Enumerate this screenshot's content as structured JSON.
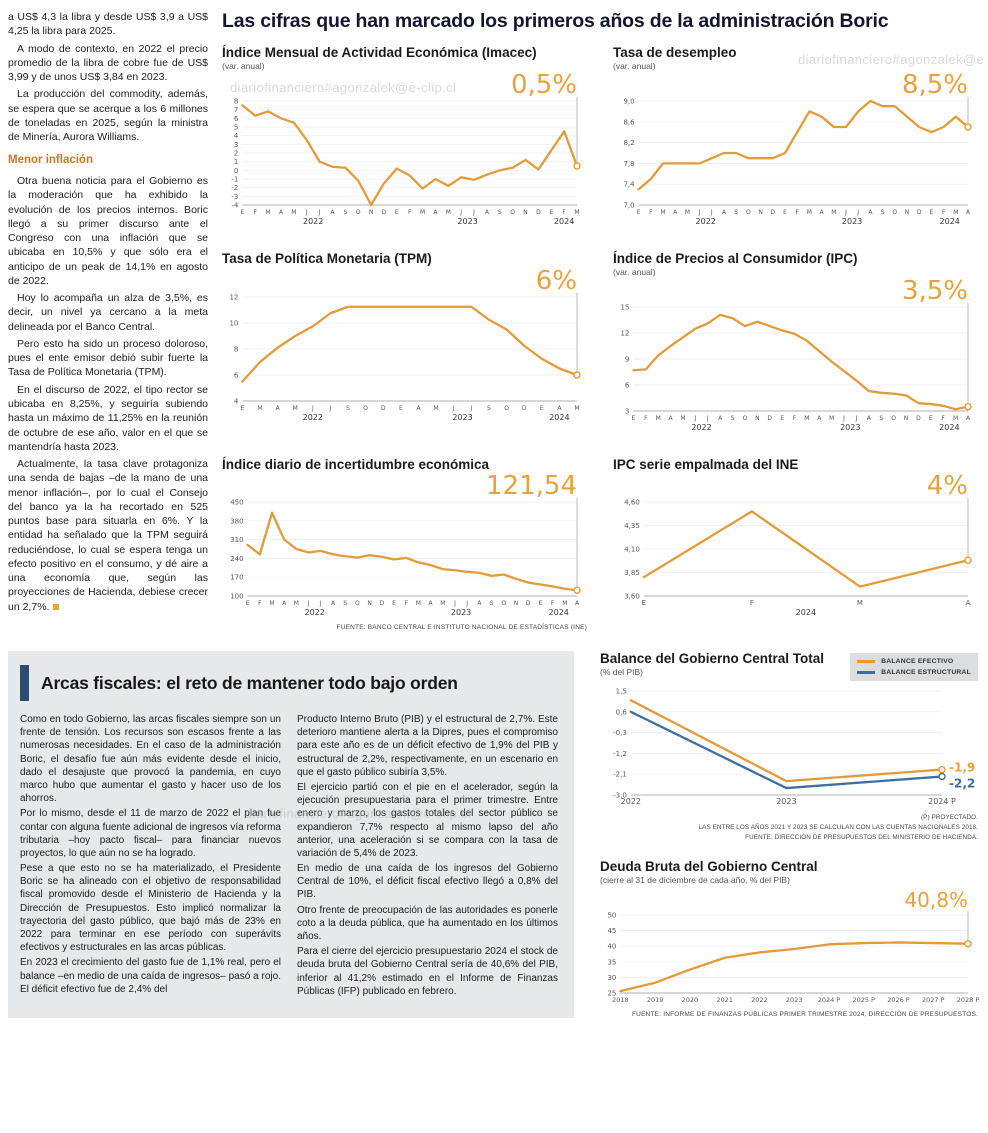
{
  "watermark": "diariofinanciero#agonzalek@e-clip.cl",
  "accent_orange": "#E29A3B",
  "accent_blue": "#3D6E9E",
  "main": {
    "headline": "Las cifras que han marcado los primeros años de la administración Boric"
  },
  "left_column": {
    "paragraphs": [
      "a US$ 4,3 la libra y desde US$ 3,9 a US$ 4,25 la libra para 2025.",
      "A modo de contexto, en 2022 el precio promedio de la libra de cobre fue de US$ 3,99 y de unos US$ 3,84 en 2023.",
      "La producción del commodity, además, se espera que se acerque a los 6 millones de toneladas en 2025, según la ministra de Minería, Aurora Williams."
    ],
    "subhead": "Menor inflación",
    "paragraphs2": [
      "Otra buena noticia para el Gobierno es la moderación que ha exhibido la evolución de los precios internos. Boric llegó a su primer discurso ante el Congreso con una inflación que se ubicaba en 10,5% y que sólo era el anticipo de un peak de 14,1% en agosto de 2022.",
      "Hoy lo acompaña un alza de 3,5%, es decir, un nivel ya cercano a la meta delineada por el Banco Central.",
      "Pero esto ha sido un proceso doloroso, pues el ente emisor debió subir fuerte la Tasa de Política Monetaria (TPM).",
      "En el discurso de 2022, el tipo rector se ubicaba en 8,25%, y seguiría subiendo hasta un máximo de 11,25% en la reunión de octubre de ese año, valor en el que se mantendría hasta 2023.",
      "Actualmente, la tasa clave protagoniza una senda de bajas –de la mano de una menor inflación–, por lo cual el Consejo del banco ya la ha recortado en 525 puntos base para situarla en 6%. Y la entidad ha señalado que la TPM seguirá reduciéndose, lo cual se espera tenga un efecto positivo en el consumo, y dé aire a una economía que, según las proyecciones de Hacienda, debiese crecer un 2,7%."
    ]
  },
  "bottom": {
    "title": "Arcas fiscales: el reto de mantener todo bajo orden",
    "col1": [
      "Como en todo Gobierno, las arcas fiscales siempre son un frente de tensión. Los recursos son escasos frente a las numerosas necesidades. En el caso de la administración Boric, el desafío fue aún más evidente desde el inicio, dado el desajuste que provocó la pandemia, en cuyo marco hubo que aumentar el gasto y hacer uso de los ahorros.",
      "Por lo mismo, desde el 11 de marzo de 2022 el plan fue contar con alguna fuente adicional de ingresos vía reforma tributaria –hoy pacto fiscal– para financiar nuevos proyectos, lo que aún no se ha logrado.",
      "Pese a que esto no se ha materializado, el Presidente Boric se ha alineado con el objetivo de responsabilidad fiscal promovido desde el Ministerio de Hacienda y la Dirección de Presupuestos. Esto implicó normalizar la trayectoria del gasto público, que bajó más de 23% en 2022 para terminar en ese período con superávits efectivos y estructurales en las arcas públicas.",
      "En 2023 el crecimiento del gasto fue de 1,1% real, pero el balance –en medio de una caída de ingresos– pasó a rojo. El déficit efectivo fue de 2,4% del"
    ],
    "col2": [
      "Producto Interno Bruto (PIB) y el estructural de 2,7%. Este deterioro mantiene alerta a la Dipres, pues el compromiso para este año es de un déficit efectivo de 1,9% del PIB y estructural de 2,2%, respectivamente, en un escenario en que el gasto público subiría 3,5%.",
      "El ejercicio partió con el pie en el acelerador, según la ejecución presupuestaria para el primer trimestre. Entre enero y marzo, los gastos totales del sector público se expandieron 7,7% respecto al mismo lapso del año anterior, una aceleración si se compara con la tasa de variación de 5,4% de 2023.",
      "En medio de una caída de los ingresos del Gobierno Central de 10%, el déficit fiscal efectivo llegó a 0,8% del PIB.",
      "Otro frente de preocupación de las autoridades es ponerle coto a la deuda pública, que ha aumentado en los últimos años.",
      "Para el cierre del ejercicio presupuestario 2024 el stock de deuda bruta del Gobierno Central sería de 40,6% del PIB, inferior al 41,2% estimado en el Informe de Finanzas Públicas (IFP) publicado en febrero."
    ]
  },
  "chart_data": [
    {
      "type": "line",
      "title": "Índice Mensual de Actividad Económica (Imacec)",
      "subtitle": "(var. anual)",
      "x_labels": [
        "E",
        "F",
        "M",
        "A",
        "M",
        "J",
        "J",
        "A",
        "S",
        "O",
        "N",
        "D",
        "E",
        "F",
        "M",
        "A",
        "M",
        "J",
        "J",
        "A",
        "S",
        "O",
        "N",
        "D",
        "E",
        "F",
        "M"
      ],
      "year_ticks": [
        {
          "label": "2022",
          "index": 5.5
        },
        {
          "label": "2023",
          "index": 17.5
        },
        {
          "label": "2024",
          "index": 25
        }
      ],
      "y_ticks": [
        "8",
        "7",
        "6",
        "5",
        "4",
        "3",
        "2",
        "1",
        "0",
        "-1",
        "-2",
        "-3",
        "-4"
      ],
      "ylim": [
        -4,
        8
      ],
      "x_label_size": 6,
      "series": [
        {
          "name": "Imacec",
          "color": "#E29A3B",
          "values": [
            7.5,
            6.3,
            6.8,
            6.0,
            5.5,
            3.5,
            1.0,
            0.4,
            0.3,
            -1.2,
            -4.0,
            -1.5,
            0.2,
            -0.6,
            -2.1,
            -1.0,
            -1.8,
            -0.8,
            -1.1,
            -0.5,
            0.0,
            0.3,
            1.2,
            0.1,
            2.3,
            4.5,
            0.5
          ]
        }
      ],
      "value_label": {
        "text": "0,5%",
        "color": "#E8A13C",
        "size": 26
      }
    },
    {
      "type": "line",
      "title": "Tasa de desempleo",
      "subtitle": "(var. anual)",
      "x_labels": [
        "E",
        "F",
        "M",
        "A",
        "M",
        "J",
        "J",
        "A",
        "S",
        "O",
        "N",
        "D",
        "E",
        "F",
        "M",
        "A",
        "M",
        "J",
        "J",
        "A",
        "S",
        "O",
        "N",
        "D",
        "E",
        "F",
        "M",
        "A"
      ],
      "year_ticks": [
        {
          "label": "2022",
          "index": 5.5
        },
        {
          "label": "2023",
          "index": 17.5
        },
        {
          "label": "2024",
          "index": 25.5
        }
      ],
      "y_ticks": [
        "9,0",
        "8,6",
        "8,2",
        "7,8",
        "7,4",
        "7,0"
      ],
      "ylim": [
        7.0,
        9.0
      ],
      "x_label_size": 6,
      "series": [
        {
          "name": "Desempleo",
          "color": "#E29A3B",
          "values": [
            7.3,
            7.5,
            7.8,
            7.8,
            7.8,
            7.8,
            7.9,
            8.0,
            8.0,
            7.9,
            7.9,
            7.9,
            8.0,
            8.4,
            8.8,
            8.7,
            8.5,
            8.5,
            8.8,
            9.0,
            8.9,
            8.9,
            8.7,
            8.5,
            8.4,
            8.5,
            8.7,
            8.5
          ]
        }
      ],
      "value_label": {
        "text": "8,5%",
        "color": "#E8A13C",
        "size": 26
      }
    },
    {
      "type": "line",
      "title": "Tasa de Política Monetaria (TPM)",
      "subtitle": "",
      "x_labels": [
        "E",
        "M",
        "A",
        "M",
        "J",
        "J",
        "S",
        "O",
        "D",
        "E",
        "A",
        "M",
        "J",
        "J",
        "S",
        "O",
        "D",
        "E",
        "A",
        "M"
      ],
      "year_ticks": [
        {
          "label": "2022",
          "index": 4
        },
        {
          "label": "2023",
          "index": 12.5
        },
        {
          "label": "2024",
          "index": 18
        }
      ],
      "y_ticks": [
        "12",
        "10",
        "8",
        "6",
        "4"
      ],
      "ylim": [
        4,
        12
      ],
      "x_label_size": 6,
      "series": [
        {
          "name": "TPM",
          "color": "#E29A3B",
          "values": [
            5.5,
            7.0,
            8.1,
            9.0,
            9.75,
            10.75,
            11.25,
            11.25,
            11.25,
            11.25,
            11.25,
            11.25,
            11.25,
            11.25,
            10.25,
            9.5,
            8.25,
            7.25,
            6.5,
            6.0
          ]
        }
      ],
      "value_label": {
        "text": "6%",
        "color": "#E8A13C",
        "size": 26
      }
    },
    {
      "type": "line",
      "title": "Índice de Precios al Consumidor (IPC)",
      "subtitle": "(var. anual)",
      "x_labels": [
        "E",
        "F",
        "M",
        "A",
        "M",
        "J",
        "J",
        "A",
        "S",
        "O",
        "N",
        "D",
        "E",
        "F",
        "M",
        "A",
        "M",
        "J",
        "J",
        "A",
        "S",
        "O",
        "N",
        "D",
        "E",
        "F",
        "M",
        "A"
      ],
      "year_ticks": [
        {
          "label": "2022",
          "index": 5.5
        },
        {
          "label": "2023",
          "index": 17.5
        },
        {
          "label": "2024",
          "index": 25.5
        }
      ],
      "y_ticks": [
        "15",
        "12",
        "9",
        "6",
        "3"
      ],
      "ylim": [
        3,
        15
      ],
      "x_label_size": 6,
      "series": [
        {
          "name": "IPC",
          "color": "#E29A3B",
          "values": [
            7.7,
            7.8,
            9.4,
            10.5,
            11.5,
            12.5,
            13.1,
            14.1,
            13.7,
            12.8,
            13.3,
            12.8,
            12.3,
            11.9,
            11.1,
            9.9,
            8.7,
            7.6,
            6.5,
            5.3,
            5.1,
            5.0,
            4.8,
            3.9,
            3.8,
            3.6,
            3.2,
            3.5
          ]
        }
      ],
      "value_label": {
        "text": "3,5%",
        "color": "#E8A13C",
        "size": 26
      }
    },
    {
      "type": "line",
      "title": "Índice diario de incertidumbre económica",
      "subtitle": "",
      "x_labels": [
        "E",
        "F",
        "M",
        "A",
        "M",
        "J",
        "J",
        "A",
        "S",
        "O",
        "N",
        "D",
        "E",
        "F",
        "M",
        "A",
        "M",
        "J",
        "J",
        "A",
        "S",
        "O",
        "N",
        "D",
        "E",
        "F",
        "M",
        "A"
      ],
      "year_ticks": [
        {
          "label": "2022",
          "index": 5.5
        },
        {
          "label": "2023",
          "index": 17.5
        },
        {
          "label": "2024",
          "index": 25.5
        }
      ],
      "y_ticks": [
        "450",
        "380",
        "310",
        "240",
        "170",
        "100"
      ],
      "ylim": [
        100,
        450
      ],
      "x_label_size": 6,
      "series": [
        {
          "name": "Incertidumbre",
          "color": "#E29A3B",
          "values": [
            290,
            255,
            410,
            310,
            275,
            262,
            268,
            255,
            248,
            243,
            252,
            246,
            236,
            242,
            225,
            215,
            200,
            196,
            190,
            186,
            175,
            180,
            164,
            150,
            143,
            136,
            127,
            121.54
          ]
        }
      ],
      "value_label": {
        "text": "121,54",
        "color": "#E8A13C",
        "size": 26
      },
      "source": "FUENTE: BANCO CENTRAL E INSTITUTO NACIONAL DE ESTADÍSTICAS (INE)"
    },
    {
      "type": "line",
      "title": "IPC serie empalmada del INE",
      "subtitle": "",
      "x_labels": [
        "E",
        "F",
        "M",
        "A"
      ],
      "year_ticks": [
        {
          "label": "2024",
          "index": 1.5
        }
      ],
      "y_ticks": [
        "4,60",
        "4,35",
        "4,10",
        "3,85",
        "3,60"
      ],
      "ylim": [
        3.6,
        4.6
      ],
      "x_label_size": 7,
      "series": [
        {
          "name": "IPC INE",
          "color": "#E29A3B",
          "values": [
            3.8,
            4.5,
            3.7,
            3.98
          ]
        }
      ],
      "value_label": {
        "text": "4%",
        "color": "#E8A13C",
        "size": 26
      }
    },
    {
      "type": "line",
      "title": "Balance del Gobierno Central Total",
      "subtitle": "(% del PIB)",
      "legend": [
        "BALANCE EFECTIVO",
        "BALANCE ESTRUCTURAL"
      ],
      "x_labels": [
        "2022",
        "2023",
        "2024 P"
      ],
      "y_ticks": [
        "1,5",
        "0,6",
        "-0,3",
        "-1,2",
        "-2,1",
        "-3,0"
      ],
      "ylim": [
        -3.0,
        1.5
      ],
      "x_label_size": 8,
      "series": [
        {
          "name": "Balance efectivo",
          "color": "#E29A3B",
          "values": [
            1.1,
            -2.4,
            -1.9
          ]
        },
        {
          "name": "Balance estructural",
          "color": "#3D6E9E",
          "values": [
            0.6,
            -2.7,
            -2.2
          ]
        }
      ],
      "end_labels": [
        {
          "text": "-1,9",
          "color": "#E8A13C",
          "series": 0,
          "dy": 2
        },
        {
          "text": "-2,2",
          "color": "#3D6E9E",
          "series": 1,
          "dy": 11
        }
      ],
      "notes": [
        "(P) PROYECTADO.",
        "LAS ENTRE LOS AÑOS 2021 Y 2023 SE CALCULAN CON LAS CUENTAS NACIONALES 2018.",
        "FUENTE: DIRECCIÓN DE PRESUPUESTOS DEL MINISTERIO DE HACIENDA."
      ]
    },
    {
      "type": "line",
      "title": "Deuda Bruta del Gobierno Central",
      "subtitle": "(cierre al 31 de diciembre de cada año, % del PIB)",
      "x_labels": [
        "2018",
        "2019",
        "2020",
        "2021",
        "2022",
        "2023",
        "2024 P",
        "2025 P",
        "2026 P",
        "2027 P",
        "2028 P"
      ],
      "y_ticks": [
        "50",
        "45",
        "40",
        "35",
        "30",
        "25"
      ],
      "ylim": [
        25,
        50
      ],
      "x_label_size": 6.5,
      "series": [
        {
          "name": "Deuda bruta",
          "color": "#E29A3B",
          "values": [
            25.6,
            28.3,
            32.5,
            36.3,
            38.0,
            39.1,
            40.6,
            41.0,
            41.2,
            41.0,
            40.8
          ]
        }
      ],
      "value_label": {
        "text": "40,8%",
        "color": "#E8A13C",
        "size": 20
      },
      "source": "FUENTE: INFORME DE FINANZAS PÚBLICAS PRIMER TRIMESTRE 2024, DIRECCIÓN DE PRESUPUESTOS."
    }
  ]
}
